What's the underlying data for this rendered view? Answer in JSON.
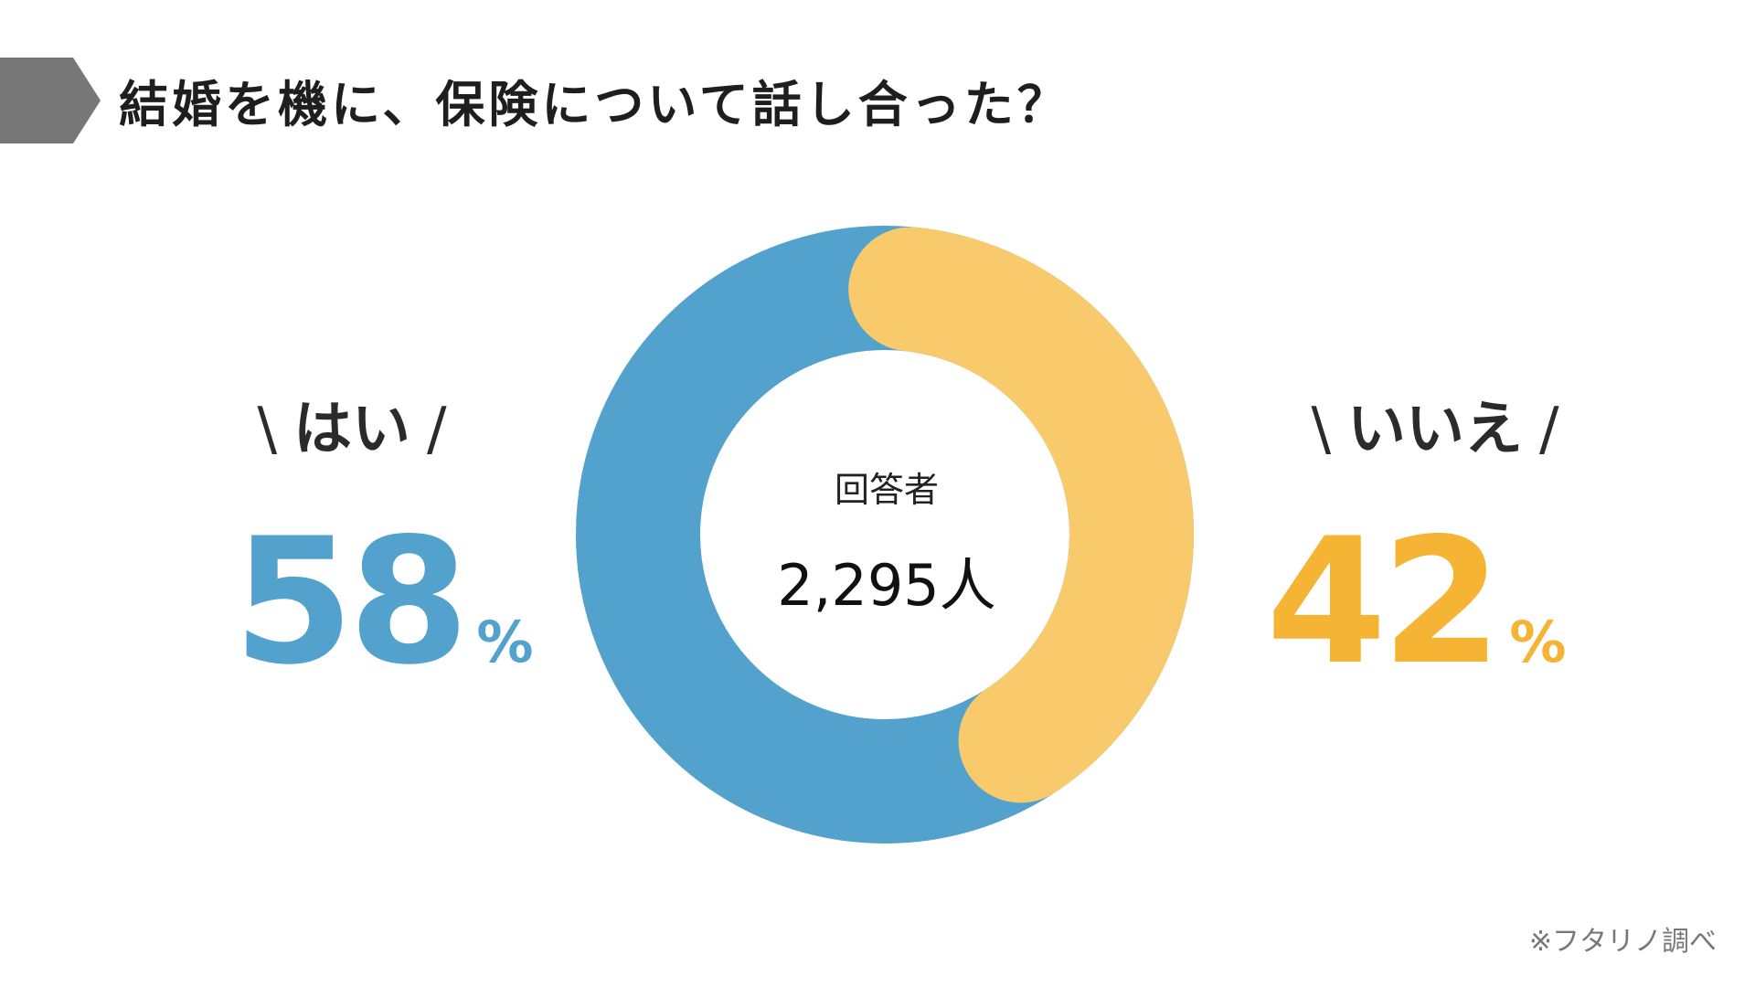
{
  "title": "結婚を機に、保険について話し合った？",
  "colors": {
    "yes": "#52a2cd",
    "no_ring": "#f9ca6b",
    "no_text": "#f5b434",
    "marker": "#777777"
  },
  "chart_data": {
    "type": "pie",
    "title": "結婚を機に、保険について話し合った？",
    "center_label": "回答者",
    "center_value": "2,295人",
    "slices": [
      {
        "label": "はい",
        "value": 58,
        "display": "58",
        "unit": "%"
      },
      {
        "label": "いいえ",
        "value": 42,
        "display": "42",
        "unit": "%"
      }
    ]
  },
  "labels": {
    "slash_left": "\\",
    "slash_right": "/"
  },
  "source": "※フタリノ調べ"
}
